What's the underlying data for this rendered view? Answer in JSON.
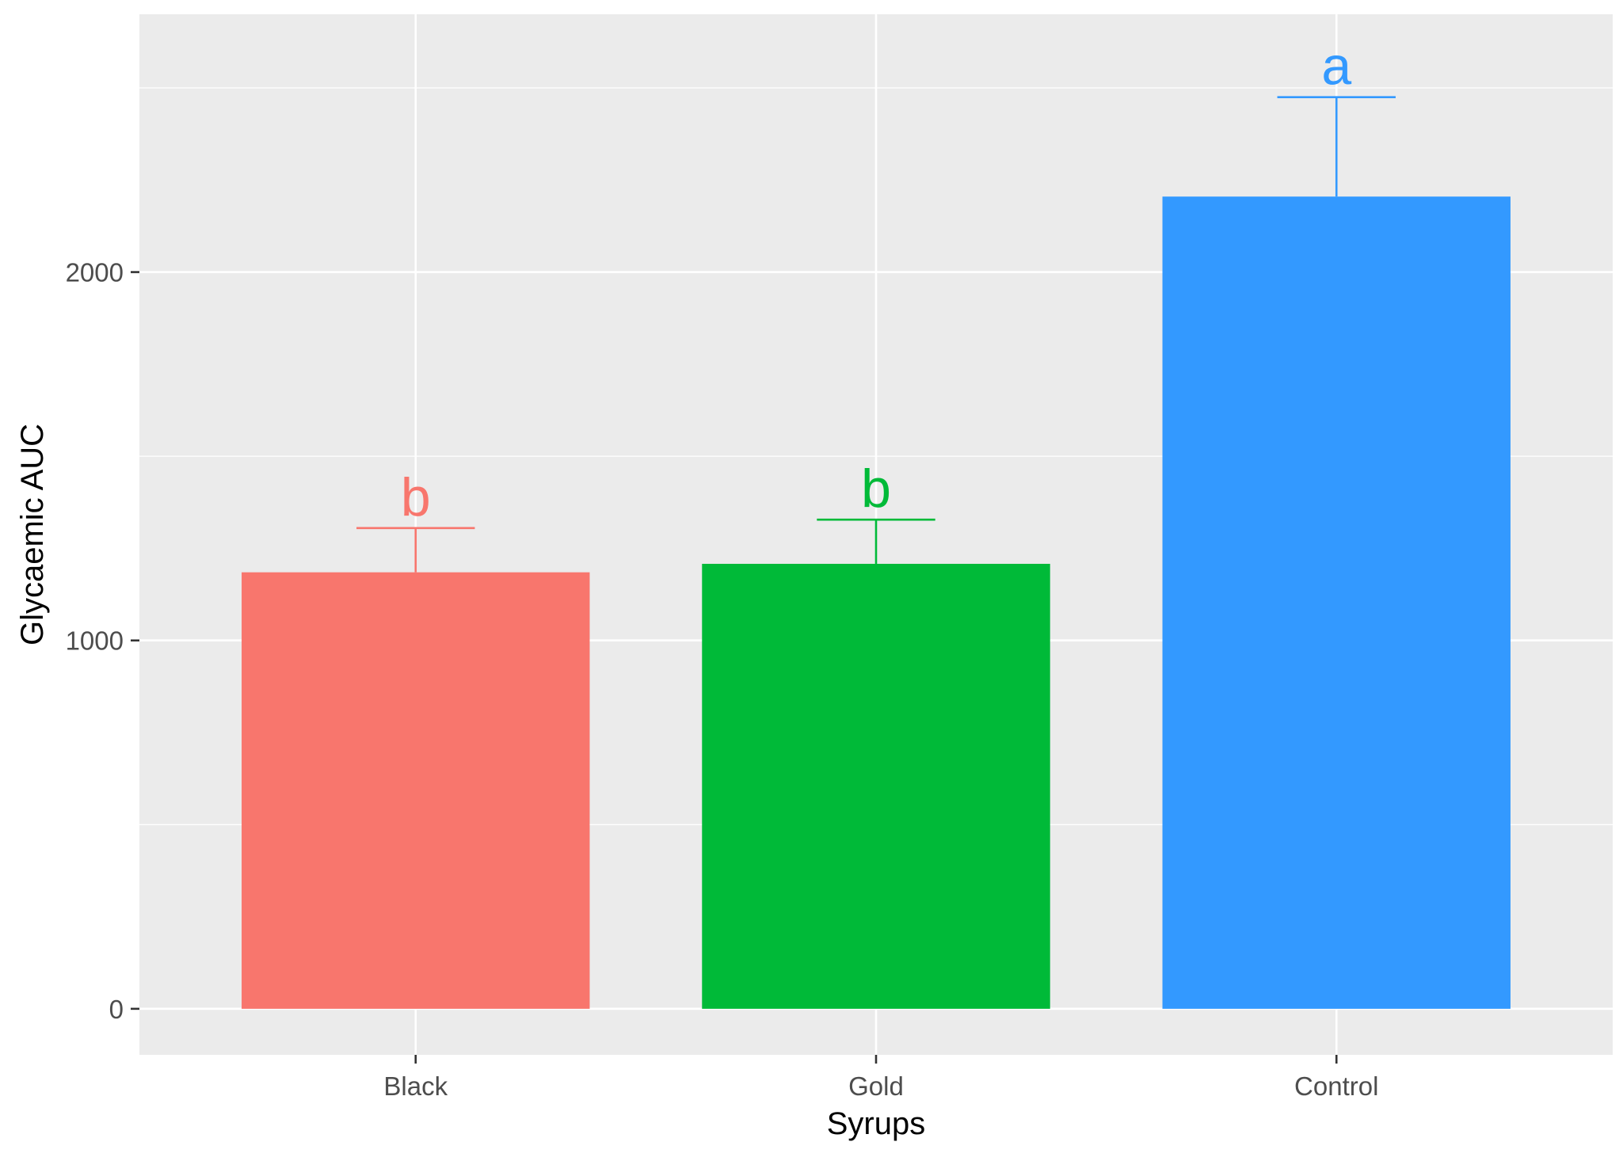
{
  "chart_data": {
    "type": "bar",
    "title": "",
    "xlabel": "Syrups",
    "ylabel": "Glycaemic AUC",
    "categories": [
      "Black",
      "Gold",
      "Control"
    ],
    "values": [
      1185,
      1208,
      2205
    ],
    "error_upper": [
      1305,
      1328,
      2475
    ],
    "significance_labels": [
      "b",
      "b",
      "a"
    ],
    "colors": [
      "#F8766D",
      "#00BA38",
      "#3399FF"
    ],
    "ylim": [
      -125,
      2700
    ],
    "y_ticks": [
      0,
      1000,
      2000
    ],
    "y_tick_labels": [
      "0",
      "1000",
      "2000"
    ],
    "grid": true,
    "legend": "none",
    "panel_background": "#EBEBEB",
    "grid_color": "#FFFFFF"
  }
}
